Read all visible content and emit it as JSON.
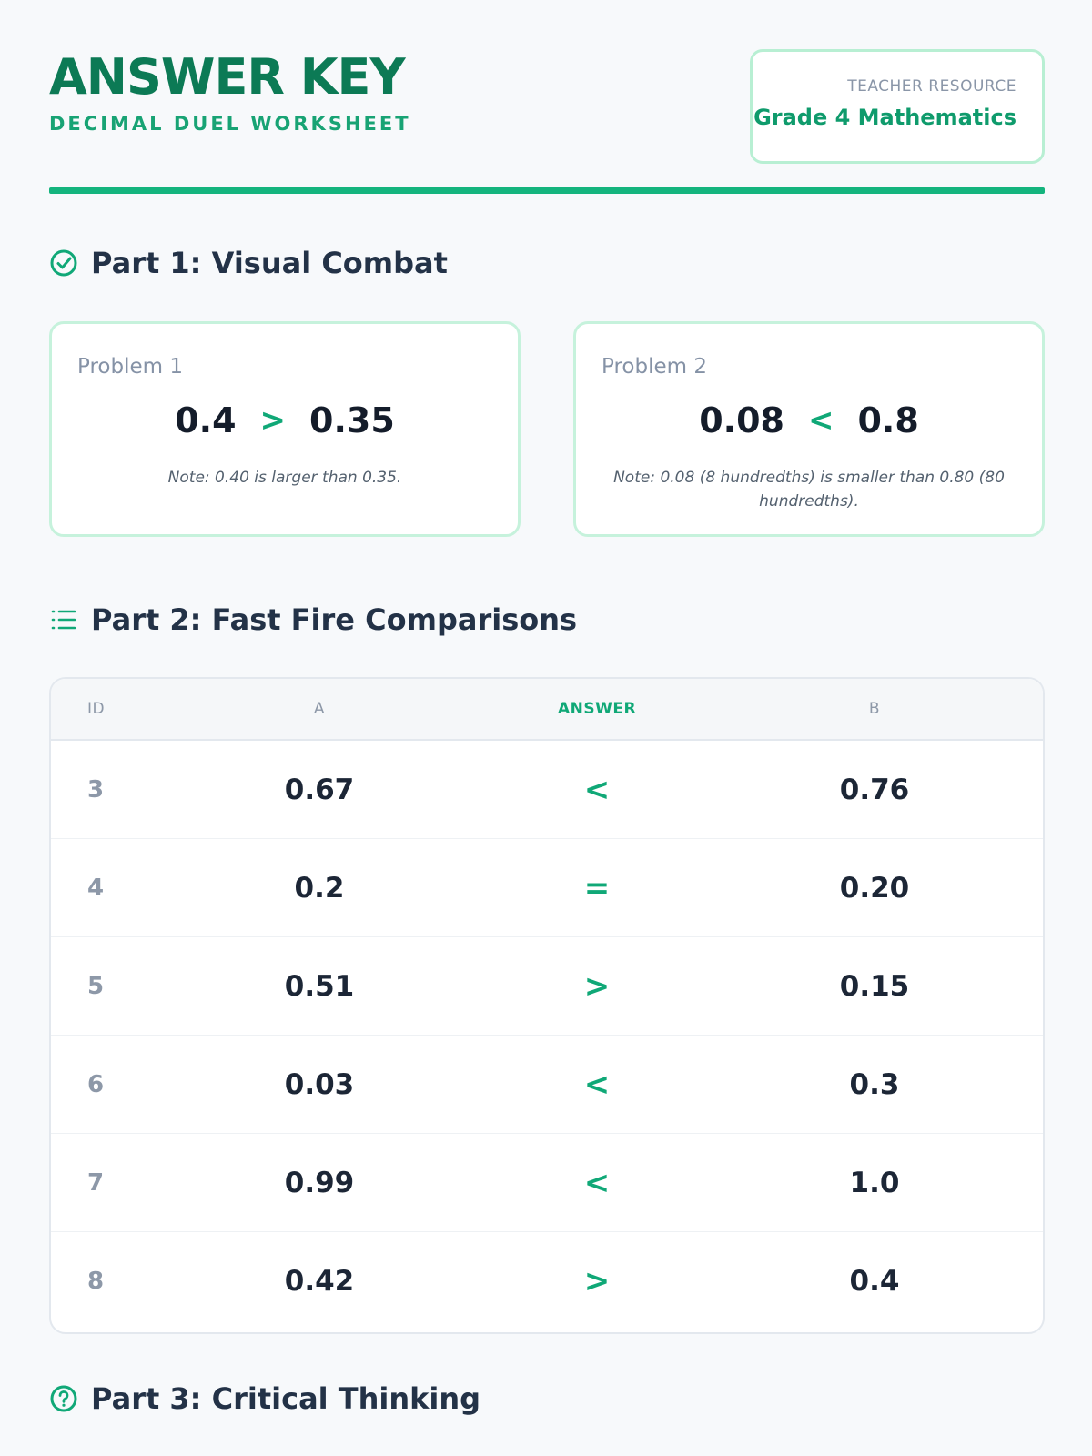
{
  "header": {
    "title": "ANSWER KEY",
    "subtitle": "DECIMAL DUEL WORKSHEET",
    "resource_label": "TEACHER RESOURCE",
    "resource_value": "Grade 4 Mathematics"
  },
  "part1": {
    "title": "Part 1: Visual Combat",
    "icon": "check-circle-icon",
    "problems": [
      {
        "label": "Problem 1",
        "a": "0.4",
        "symbol": ">",
        "b": "0.35",
        "note": "Note: 0.40 is larger than 0.35."
      },
      {
        "label": "Problem 2",
        "a": "0.08",
        "symbol": "<",
        "b": "0.8",
        "note": "Note: 0.08 (8 hundredths) is smaller than 0.80 (80 hundredths)."
      }
    ]
  },
  "part2": {
    "title": "Part 2: Fast Fire Comparisons",
    "icon": "list-icon",
    "columns": {
      "id": "ID",
      "a": "A",
      "answer": "ANSWER",
      "b": "B"
    },
    "rows": [
      {
        "id": "3",
        "a": "0.67",
        "answer": "<",
        "b": "0.76"
      },
      {
        "id": "4",
        "a": "0.2",
        "answer": "=",
        "b": "0.20"
      },
      {
        "id": "5",
        "a": "0.51",
        "answer": ">",
        "b": "0.15"
      },
      {
        "id": "6",
        "a": "0.03",
        "answer": "<",
        "b": "0.3"
      },
      {
        "id": "7",
        "a": "0.99",
        "answer": "<",
        "b": "1.0"
      },
      {
        "id": "8",
        "a": "0.42",
        "answer": ">",
        "b": "0.4"
      }
    ]
  },
  "part3": {
    "title": "Part 3: Critical Thinking",
    "icon": "help-circle-icon"
  },
  "colors": {
    "brand_dark": "#0c7a55",
    "brand": "#10a877",
    "rule": "#14b47d"
  }
}
